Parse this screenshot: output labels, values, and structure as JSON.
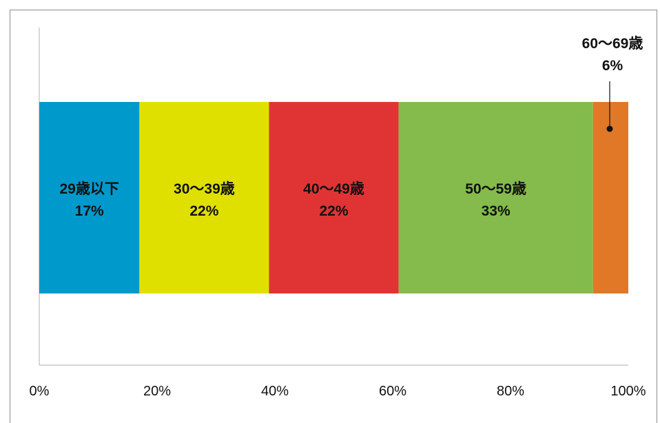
{
  "chart_data": {
    "type": "bar",
    "orientation": "horizontal",
    "stacked": true,
    "xlim": [
      0,
      100
    ],
    "x_ticks": [
      "0%",
      "20%",
      "40%",
      "60%",
      "80%",
      "100%"
    ],
    "segments": [
      {
        "label": "29歳以下",
        "value": 17,
        "value_label": "17%",
        "color": "#0099cc"
      },
      {
        "label": "30〜39歳",
        "value": 22,
        "value_label": "22%",
        "color": "#e0e000"
      },
      {
        "label": "40〜49歳",
        "value": 22,
        "value_label": "22%",
        "color": "#e03434"
      },
      {
        "label": "50〜59歳",
        "value": 33,
        "value_label": "33%",
        "color": "#84bb4c"
      },
      {
        "label": "60〜69歳",
        "value": 6,
        "value_label": "6%",
        "color": "#e07828",
        "callout": true
      }
    ]
  }
}
